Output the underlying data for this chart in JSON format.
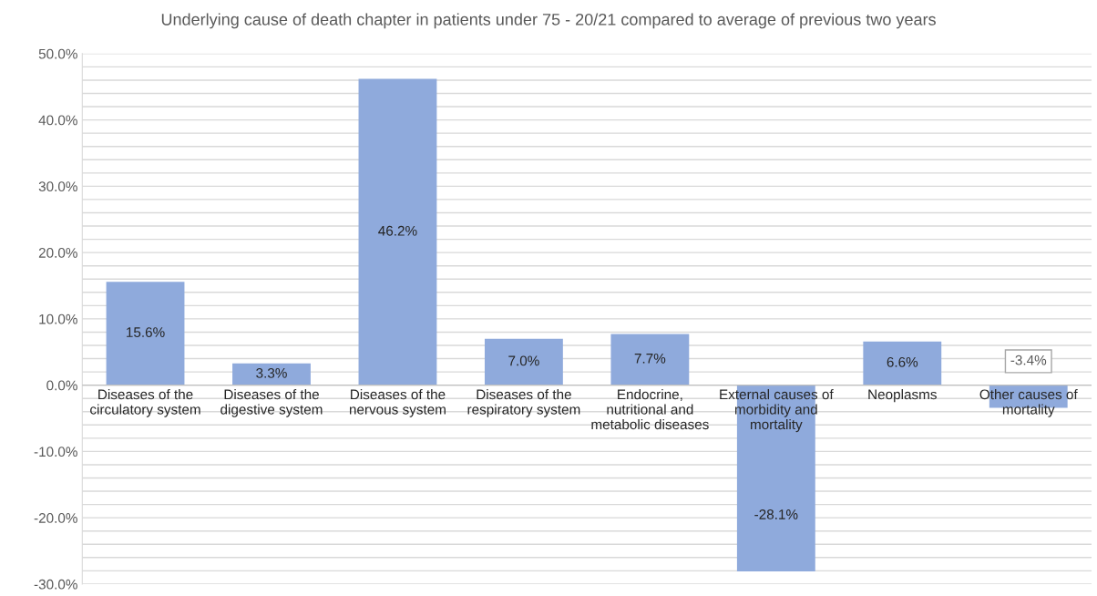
{
  "chart_data": {
    "type": "bar",
    "title": "Underlying cause of death chapter in patients under 75 - 20/21 compared to average of previous two years",
    "categories": [
      "Diseases of the circulatory system",
      "Diseases of the digestive system",
      "Diseases of the nervous system",
      "Diseases of the respiratory system",
      "Endocrine, nutritional and metabolic diseases",
      "External causes of morbidity and mortality",
      "Neoplasms",
      "Other causes of mortality"
    ],
    "values": [
      15.6,
      3.3,
      46.2,
      7.0,
      7.7,
      -28.1,
      6.6,
      -3.4
    ],
    "value_labels": [
      "15.6%",
      "3.3%",
      "46.2%",
      "7.0%",
      "7.7%",
      "-28.1%",
      "6.6%",
      "-3.4%"
    ],
    "color": "#8faadc",
    "ylim": [
      -30,
      50
    ],
    "yticks": [
      {
        "value": -30,
        "label": "-30.0%"
      },
      {
        "value": -28,
        "label": null
      },
      {
        "value": -26,
        "label": null
      },
      {
        "value": -24,
        "label": null
      },
      {
        "value": -22,
        "label": null
      },
      {
        "value": -20,
        "label": "-20.0%"
      },
      {
        "value": -18,
        "label": null
      },
      {
        "value": -16,
        "label": null
      },
      {
        "value": -14,
        "label": null
      },
      {
        "value": -12,
        "label": null
      },
      {
        "value": -10,
        "label": "-10.0%"
      },
      {
        "value": -8,
        "label": null
      },
      {
        "value": -6,
        "label": null
      },
      {
        "value": -4,
        "label": null
      },
      {
        "value": -2,
        "label": null
      },
      {
        "value": 0,
        "label": "0.0%"
      },
      {
        "value": 2,
        "label": null
      },
      {
        "value": 4,
        "label": null
      },
      {
        "value": 6,
        "label": null
      },
      {
        "value": 8,
        "label": null
      },
      {
        "value": 10,
        "label": "10.0%"
      },
      {
        "value": 12,
        "label": null
      },
      {
        "value": 14,
        "label": null
      },
      {
        "value": 16,
        "label": null
      },
      {
        "value": 18,
        "label": null
      },
      {
        "value": 20,
        "label": "20.0%"
      },
      {
        "value": 22,
        "label": null
      },
      {
        "value": 24,
        "label": null
      },
      {
        "value": 26,
        "label": null
      },
      {
        "value": 28,
        "label": null
      },
      {
        "value": 30,
        "label": "30.0%"
      },
      {
        "value": 32,
        "label": null
      },
      {
        "value": 34,
        "label": null
      },
      {
        "value": 36,
        "label": null
      },
      {
        "value": 38,
        "label": null
      },
      {
        "value": 40,
        "label": "40.0%"
      },
      {
        "value": 42,
        "label": null
      },
      {
        "value": 44,
        "label": null
      },
      {
        "value": 46,
        "label": null
      },
      {
        "value": 48,
        "label": null
      },
      {
        "value": 50,
        "label": "50.0%"
      }
    ],
    "grid": "y"
  }
}
